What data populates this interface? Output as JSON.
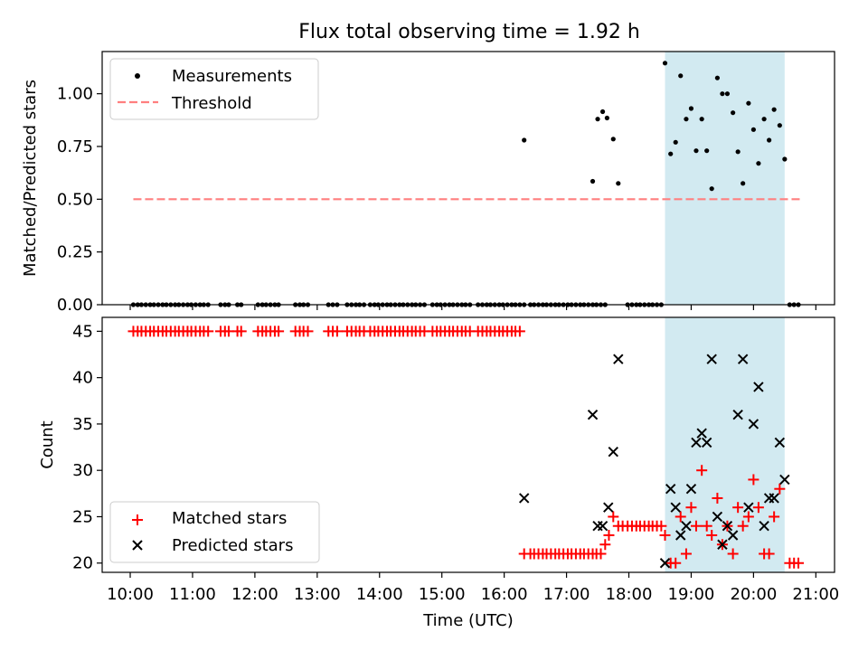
{
  "title": "Flux total observing time = 1.92 h",
  "colors": {
    "measurement": "#000000",
    "threshold": "#ff7f7f",
    "matched": "#ff0000",
    "predicted": "#000000",
    "observing_span": "#add8e6"
  },
  "chart_data": [
    {
      "type": "scatter",
      "panel": "top",
      "ylabel": "Matched/Predicted stars",
      "xlabel": "",
      "xlim": [
        9.55,
        21.3
      ],
      "ylim": [
        0.0,
        1.2
      ],
      "yticks": [
        0.0,
        0.25,
        0.5,
        0.75,
        1.0
      ],
      "ytick_labels": [
        "0.00",
        "0.25",
        "0.50",
        "0.75",
        "1.00"
      ],
      "shaded_span": [
        18.58,
        20.5
      ],
      "legend": {
        "position": "top-left",
        "entries": [
          {
            "label": "Measurements",
            "marker": "dot"
          },
          {
            "label": "Threshold",
            "marker": "dashed-line"
          }
        ]
      },
      "threshold": {
        "name": "Threshold",
        "y": 0.5,
        "x": [
          10.05,
          20.75
        ]
      },
      "series": [
        {
          "name": "Measurements",
          "zero_points_x": [
            10.05,
            10.12,
            10.18,
            10.25,
            10.32,
            10.38,
            10.45,
            10.52,
            10.58,
            10.65,
            10.72,
            10.78,
            10.85,
            10.92,
            10.98,
            11.05,
            11.12,
            11.18,
            11.25,
            11.45,
            11.52,
            11.58,
            11.72,
            11.78,
            12.05,
            12.12,
            12.18,
            12.25,
            12.32,
            12.38,
            12.65,
            12.72,
            12.78,
            12.85,
            13.18,
            13.25,
            13.32,
            13.48,
            13.55,
            13.62,
            13.68,
            13.75,
            13.85,
            13.92,
            13.98,
            14.05,
            14.12,
            14.18,
            14.25,
            14.32,
            14.38,
            14.45,
            14.52,
            14.58,
            14.65,
            14.72,
            14.85,
            14.92,
            14.98,
            15.05,
            15.12,
            15.18,
            15.25,
            15.32,
            15.38,
            15.45,
            15.58,
            15.65,
            15.72,
            15.78,
            15.85,
            15.92,
            15.98,
            16.05,
            16.12,
            16.18,
            16.25,
            16.32,
            16.42,
            16.48,
            16.55,
            16.62,
            16.68,
            16.75,
            16.82,
            16.88,
            16.95,
            17.02,
            17.08,
            17.15,
            17.22,
            17.28,
            17.35,
            17.42,
            17.48,
            17.55,
            17.62,
            17.98,
            18.05,
            18.12,
            18.18,
            18.25,
            18.32,
            18.38,
            18.45,
            18.52,
            20.58,
            20.65,
            20.72
          ],
          "points": [
            {
              "x": 16.32,
              "y": 0.78
            },
            {
              "x": 17.42,
              "y": 0.585
            },
            {
              "x": 17.5,
              "y": 0.88
            },
            {
              "x": 17.58,
              "y": 0.915
            },
            {
              "x": 17.65,
              "y": 0.885
            },
            {
              "x": 17.75,
              "y": 0.785
            },
            {
              "x": 17.83,
              "y": 0.575
            },
            {
              "x": 18.58,
              "y": 1.145
            },
            {
              "x": 18.67,
              "y": 0.715
            },
            {
              "x": 18.75,
              "y": 0.77
            },
            {
              "x": 18.83,
              "y": 1.085
            },
            {
              "x": 18.92,
              "y": 0.88
            },
            {
              "x": 19.0,
              "y": 0.93
            },
            {
              "x": 19.08,
              "y": 0.73
            },
            {
              "x": 19.17,
              "y": 0.88
            },
            {
              "x": 19.25,
              "y": 0.73
            },
            {
              "x": 19.33,
              "y": 0.55
            },
            {
              "x": 19.42,
              "y": 1.075
            },
            {
              "x": 19.5,
              "y": 1.0
            },
            {
              "x": 19.58,
              "y": 1.0
            },
            {
              "x": 19.67,
              "y": 0.91
            },
            {
              "x": 19.75,
              "y": 0.725
            },
            {
              "x": 19.83,
              "y": 0.575
            },
            {
              "x": 19.92,
              "y": 0.955
            },
            {
              "x": 20.0,
              "y": 0.83
            },
            {
              "x": 20.08,
              "y": 0.67
            },
            {
              "x": 20.17,
              "y": 0.88
            },
            {
              "x": 20.25,
              "y": 0.78
            },
            {
              "x": 20.33,
              "y": 0.925
            },
            {
              "x": 20.42,
              "y": 0.85
            },
            {
              "x": 20.5,
              "y": 0.69
            }
          ]
        }
      ]
    },
    {
      "type": "scatter",
      "panel": "bottom",
      "xlabel": "Time (UTC)",
      "ylabel": "Count",
      "xlim": [
        9.55,
        21.3
      ],
      "ylim": [
        19,
        46.5
      ],
      "yticks": [
        20,
        25,
        30,
        35,
        40,
        45
      ],
      "ytick_labels": [
        "20",
        "25",
        "30",
        "35",
        "40",
        "45"
      ],
      "xticks": [
        10,
        11,
        12,
        13,
        14,
        15,
        16,
        17,
        18,
        19,
        20,
        21
      ],
      "xtick_labels": [
        "10:00",
        "11:00",
        "12:00",
        "13:00",
        "14:00",
        "15:00",
        "16:00",
        "17:00",
        "18:00",
        "19:00",
        "20:00",
        "21:00"
      ],
      "shaded_span": [
        18.58,
        20.5
      ],
      "legend": {
        "position": "bottom-left",
        "entries": [
          {
            "label": "Matched stars",
            "marker": "plus"
          },
          {
            "label": "Predicted stars",
            "marker": "x"
          }
        ]
      },
      "series": [
        {
          "name": "Matched stars",
          "flat_runs": [
            {
              "y": 45,
              "x": [
                10.05,
                10.12,
                10.18,
                10.25,
                10.32,
                10.38,
                10.45,
                10.52,
                10.58,
                10.65,
                10.72,
                10.78,
                10.85,
                10.92,
                10.98,
                11.05,
                11.12,
                11.18,
                11.25,
                11.45,
                11.52,
                11.58,
                11.72,
                11.78,
                12.05,
                12.12,
                12.18,
                12.25,
                12.32,
                12.38,
                12.65,
                12.72,
                12.78,
                12.85,
                13.18,
                13.25,
                13.32,
                13.48,
                13.55,
                13.62,
                13.68,
                13.75,
                13.85,
                13.92,
                13.98,
                14.05,
                14.12,
                14.18,
                14.25,
                14.32,
                14.38,
                14.45,
                14.52,
                14.58,
                14.65,
                14.72,
                14.85,
                14.92,
                14.98,
                15.05,
                15.12,
                15.18,
                15.25,
                15.32,
                15.38,
                15.45,
                15.58,
                15.65,
                15.72,
                15.78,
                15.85,
                15.92,
                15.98,
                16.05,
                16.12,
                16.18,
                16.25
              ]
            },
            {
              "y": 21,
              "x": [
                16.32,
                16.42,
                16.48,
                16.55,
                16.62,
                16.68,
                16.75,
                16.82,
                16.88,
                16.95,
                17.02,
                17.08,
                17.15,
                17.22,
                17.28,
                17.35,
                17.42,
                17.48,
                17.55
              ]
            },
            {
              "y": 24,
              "x": [
                17.83,
                17.9,
                17.98,
                18.05,
                18.12,
                18.18,
                18.25,
                18.32,
                18.38,
                18.45,
                18.52
              ]
            },
            {
              "y": 20,
              "x": [
                20.58,
                20.65,
                20.72
              ]
            }
          ],
          "points": [
            {
              "x": 17.62,
              "y": 22
            },
            {
              "x": 17.68,
              "y": 23
            },
            {
              "x": 17.75,
              "y": 25
            },
            {
              "x": 18.58,
              "y": 23
            },
            {
              "x": 18.67,
              "y": 20
            },
            {
              "x": 18.75,
              "y": 20
            },
            {
              "x": 18.83,
              "y": 25
            },
            {
              "x": 18.92,
              "y": 21
            },
            {
              "x": 19.0,
              "y": 26
            },
            {
              "x": 19.08,
              "y": 24
            },
            {
              "x": 19.17,
              "y": 30
            },
            {
              "x": 19.25,
              "y": 24
            },
            {
              "x": 19.33,
              "y": 23
            },
            {
              "x": 19.42,
              "y": 27
            },
            {
              "x": 19.5,
              "y": 22
            },
            {
              "x": 19.58,
              "y": 24
            },
            {
              "x": 19.67,
              "y": 21
            },
            {
              "x": 19.75,
              "y": 26
            },
            {
              "x": 19.83,
              "y": 24
            },
            {
              "x": 19.92,
              "y": 25
            },
            {
              "x": 20.0,
              "y": 29
            },
            {
              "x": 20.08,
              "y": 26
            },
            {
              "x": 20.17,
              "y": 21
            },
            {
              "x": 20.25,
              "y": 21
            },
            {
              "x": 20.33,
              "y": 25
            },
            {
              "x": 20.42,
              "y": 28
            }
          ]
        },
        {
          "name": "Predicted stars",
          "points": [
            {
              "x": 16.32,
              "y": 27
            },
            {
              "x": 17.42,
              "y": 36
            },
            {
              "x": 17.5,
              "y": 24
            },
            {
              "x": 17.58,
              "y": 24
            },
            {
              "x": 17.67,
              "y": 26
            },
            {
              "x": 17.75,
              "y": 32
            },
            {
              "x": 17.83,
              "y": 42
            },
            {
              "x": 18.58,
              "y": 20
            },
            {
              "x": 18.67,
              "y": 28
            },
            {
              "x": 18.75,
              "y": 26
            },
            {
              "x": 18.83,
              "y": 23
            },
            {
              "x": 18.92,
              "y": 24
            },
            {
              "x": 19.0,
              "y": 28
            },
            {
              "x": 19.08,
              "y": 33
            },
            {
              "x": 19.17,
              "y": 34
            },
            {
              "x": 19.25,
              "y": 33
            },
            {
              "x": 19.33,
              "y": 42
            },
            {
              "x": 19.42,
              "y": 25
            },
            {
              "x": 19.5,
              "y": 22
            },
            {
              "x": 19.58,
              "y": 24
            },
            {
              "x": 19.67,
              "y": 23
            },
            {
              "x": 19.75,
              "y": 36
            },
            {
              "x": 19.83,
              "y": 42
            },
            {
              "x": 19.92,
              "y": 26
            },
            {
              "x": 20.0,
              "y": 35
            },
            {
              "x": 20.08,
              "y": 39
            },
            {
              "x": 20.17,
              "y": 24
            },
            {
              "x": 20.25,
              "y": 27
            },
            {
              "x": 20.33,
              "y": 27
            },
            {
              "x": 20.42,
              "y": 33
            },
            {
              "x": 20.5,
              "y": 29
            }
          ]
        }
      ]
    }
  ]
}
